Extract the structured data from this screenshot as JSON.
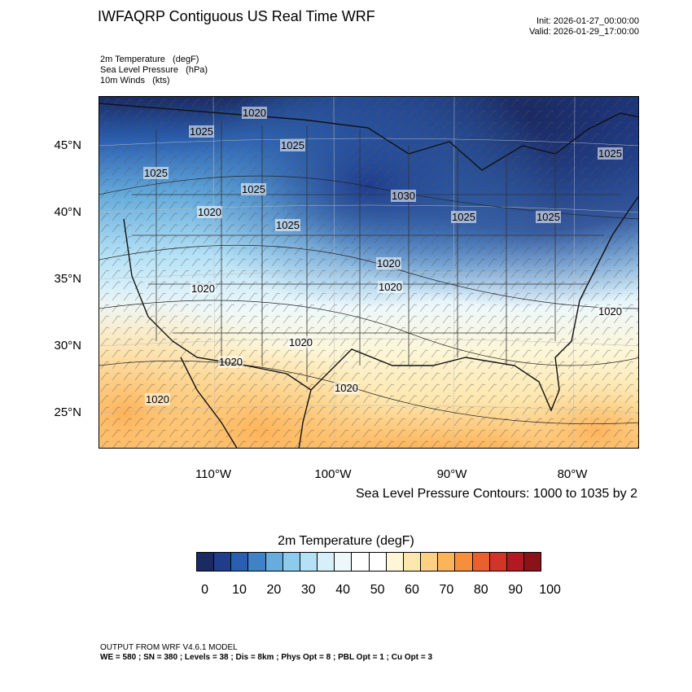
{
  "header": {
    "title": "IWFAQRP Contiguous US Real Time WRF",
    "init": "Init: 2026-01-27_00:00:00",
    "valid": "Valid: 2026-01-29_17:00:00"
  },
  "fields": [
    "2m Temperature   (degF)",
    "Sea Level Pressure   (hPa)",
    "10m Winds   (kts)"
  ],
  "map": {
    "lat_labels": [
      "45°N",
      "40°N",
      "35°N",
      "30°N",
      "25°N"
    ],
    "lon_labels": [
      "110°W",
      "100°W",
      "90°W",
      "80°W"
    ],
    "pressure_labels": [
      "1020",
      "1025",
      "1025",
      "1025",
      "1025",
      "1020",
      "1025",
      "1030",
      "1025",
      "1025",
      "1020",
      "1020",
      "1020",
      "1020",
      "1020",
      "1020",
      "1020",
      "1020",
      "1025",
      "1020"
    ]
  },
  "contour_note": "Sea Level Pressure Contours: 1000 to 1035 by 2",
  "colorbar": {
    "title": "2m Temperature  (degF)",
    "colors": [
      "#1b2a63",
      "#203d8c",
      "#2a5eb0",
      "#3f83c6",
      "#66acdc",
      "#8ccbec",
      "#b4e1f6",
      "#d6eff9",
      "#eef8fb",
      "#ffffff",
      "#ffffff",
      "#fdf6d8",
      "#fde7ae",
      "#fdd083",
      "#fdb359",
      "#f68e3e",
      "#e8602e",
      "#cf3628",
      "#b11a22",
      "#8b1217"
    ],
    "ticks": [
      "0",
      "10",
      "20",
      "30",
      "40",
      "50",
      "60",
      "70",
      "80",
      "90",
      "100"
    ]
  },
  "footer": {
    "line1": "OUTPUT FROM WRF V4.6.1 MODEL",
    "line2": "WE = 580 ; SN = 380 ; Levels = 38 ; Dis = 8km ; Phys Opt = 8 ; PBL Opt = 1 ; Cu Opt = 3"
  }
}
